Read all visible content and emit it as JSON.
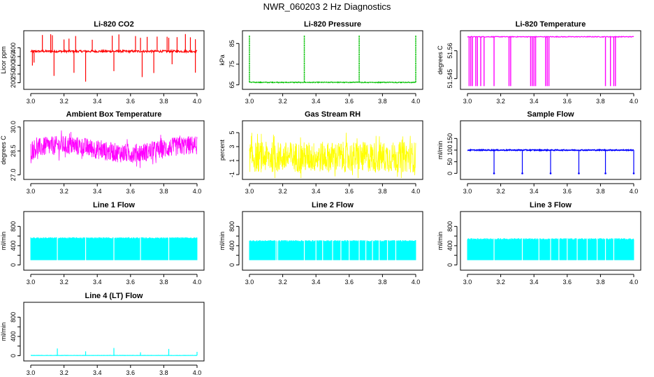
{
  "page": {
    "title": "NWR_060203  2 Hz Diagnostics"
  },
  "chart_data": [
    {
      "type": "line",
      "title": "Li-820 CO2",
      "ylabel": "Licor ppm",
      "color": "#ff0000",
      "xlim": [
        3.0,
        4.0
      ],
      "ylim": [
        170,
        490
      ],
      "xticks": [
        "3.0",
        "3.2",
        "3.4",
        "3.6",
        "3.8",
        "4.0"
      ],
      "yticks": [
        200,
        250,
        300,
        350,
        400
      ],
      "baseline": 380,
      "noise": 6,
      "pattern": "co2",
      "spikes_up": [
        3.07,
        3.12,
        3.13,
        3.2,
        3.23,
        3.27,
        3.37,
        3.49,
        3.53,
        3.63,
        3.66,
        3.7,
        3.76,
        3.82,
        3.83,
        3.88,
        3.93,
        3.96,
        3.99
      ],
      "spikes_down": [
        3.01,
        3.02,
        3.14,
        3.26,
        3.33,
        3.5,
        3.67,
        3.74,
        3.85,
        3.99
      ],
      "spike_high": 480,
      "spike_low": 185
    },
    {
      "type": "line",
      "title": "Li-820 Pressure",
      "ylabel": "kPa",
      "color": "#00c000",
      "xlim": [
        3.0,
        4.0
      ],
      "ylim": [
        63.5,
        90.5
      ],
      "xticks": [
        "3.0",
        "3.2",
        "3.4",
        "3.6",
        "3.8",
        "4.0"
      ],
      "yticks": [
        65,
        75,
        85
      ],
      "baseline": 66.2,
      "noise": 0.15,
      "pattern": "pressure",
      "spikes_up": [
        3.0,
        3.33,
        3.66,
        4.0
      ],
      "spike_high": 89
    },
    {
      "type": "line",
      "title": "Li-820 Temperature",
      "ylabel": "degrees C",
      "color": "#ff00ff",
      "xlim": [
        3.0,
        4.0
      ],
      "ylim": [
        51.54,
        51.57
      ],
      "xticks": [
        "3.0",
        "3.2",
        "3.4",
        "3.6",
        "3.8",
        "4.0"
      ],
      "yticks": [
        51.545,
        51.56
      ],
      "baseline": 51.5675,
      "noise": 0.0002,
      "pattern": "temperature",
      "spikes_down": [
        3.01,
        3.02,
        3.03,
        3.05,
        3.06,
        3.08,
        3.1,
        3.16,
        3.25,
        3.26,
        3.38,
        3.39,
        3.4,
        3.41,
        3.47,
        3.48,
        3.49,
        3.83,
        3.86,
        3.88,
        3.89
      ],
      "spike_low": 51.541
    },
    {
      "type": "line",
      "title": "Ambient Box Temperature",
      "ylabel": "degrees C",
      "color": "#ff00ff",
      "xlim": [
        3.0,
        4.0
      ],
      "ylim": [
        26.8,
        30.3
      ],
      "xticks": [
        "3.0",
        "3.2",
        "3.4",
        "3.6",
        "3.8",
        "4.0"
      ],
      "yticks": [
        27.0,
        28.5,
        30.0
      ],
      "yticklabels": [
        "27.0",
        "28.5",
        "30.0"
      ],
      "baseline": 28.6,
      "noise": 0.6,
      "pattern": "band"
    },
    {
      "type": "line",
      "title": "Gas Stream RH",
      "ylabel": "percent",
      "color": "#ffff00",
      "xlim": [
        3.0,
        4.0
      ],
      "ylim": [
        -1.5,
        6.5
      ],
      "xticks": [
        "3.0",
        "3.2",
        "3.4",
        "3.6",
        "3.8",
        "4.0"
      ],
      "yticks": [
        -1,
        1,
        3,
        5
      ],
      "baseline": 1.5,
      "noise": 2.2,
      "pattern": "band"
    },
    {
      "type": "line",
      "title": "Sample Flow",
      "ylabel": "ml/min",
      "color": "#0000ff",
      "xlim": [
        3.0,
        4.0
      ],
      "ylim": [
        -20,
        220
      ],
      "xticks": [
        "3.0",
        "3.2",
        "3.4",
        "3.6",
        "3.8",
        "4.0"
      ],
      "yticks": [
        0,
        50,
        100,
        150
      ],
      "baseline": 100,
      "noise": 2,
      "pattern": "sample",
      "spikes_down": [
        3.16,
        3.33,
        3.5,
        3.67,
        3.83,
        4.0
      ],
      "spike_low": 0
    },
    {
      "type": "line",
      "title": "Line 1 Flow",
      "ylabel": "ml/min",
      "color": "#00ffff",
      "xlim": [
        3.0,
        4.0
      ],
      "ylim": [
        -80,
        1080
      ],
      "xticks": [
        "3.0",
        "3.2",
        "3.4",
        "3.6",
        "3.8",
        "4.0"
      ],
      "yticks": [
        0,
        200,
        400,
        600,
        800
      ],
      "yticklabels": [
        "0",
        "",
        "400",
        "",
        "800"
      ],
      "band_low": 100,
      "band_high": 560,
      "pattern": "flow",
      "gaps": [
        3.16,
        3.33,
        3.5,
        3.66,
        3.83
      ]
    },
    {
      "type": "line",
      "title": "Line 2 Flow",
      "ylabel": "ml/min",
      "color": "#00ffff",
      "xlim": [
        3.0,
        4.0
      ],
      "ylim": [
        -80,
        1080
      ],
      "xticks": [
        "3.0",
        "3.2",
        "3.4",
        "3.6",
        "3.8",
        "4.0"
      ],
      "yticks": [
        0,
        200,
        400,
        600,
        800
      ],
      "yticklabels": [
        "0",
        "",
        "400",
        "",
        "800"
      ],
      "band_low": 100,
      "band_high": 500,
      "pattern": "flow",
      "gaps": [
        3.16,
        3.17,
        3.33,
        3.4,
        3.44,
        3.5,
        3.55,
        3.6,
        3.66,
        3.7,
        3.74,
        3.78,
        3.83,
        3.88
      ]
    },
    {
      "type": "line",
      "title": "Line 3 Flow",
      "ylabel": "ml/min",
      "color": "#00ffff",
      "xlim": [
        3.0,
        4.0
      ],
      "ylim": [
        -80,
        1080
      ],
      "xticks": [
        "3.0",
        "3.2",
        "3.4",
        "3.6",
        "3.8",
        "4.0"
      ],
      "yticks": [
        0,
        200,
        400,
        600,
        800
      ],
      "yticklabels": [
        "0",
        "",
        "400",
        "",
        "800"
      ],
      "band_low": 100,
      "band_high": 540,
      "pattern": "flow",
      "gaps": [
        3.16,
        3.33,
        3.43,
        3.5,
        3.55,
        3.6,
        3.66,
        3.72,
        3.78,
        3.83,
        3.88
      ]
    },
    {
      "type": "line",
      "title": "Line 4 (LT) Flow",
      "ylabel": "ml/min",
      "color": "#00ffff",
      "xlim": [
        3.0,
        4.0
      ],
      "ylim": [
        -80,
        1080
      ],
      "xticks": [
        "3.0",
        "3.2",
        "3.4",
        "3.6",
        "3.8",
        "4.0"
      ],
      "yticks": [
        0,
        200,
        400,
        600,
        800
      ],
      "yticklabels": [
        "0",
        "",
        "400",
        "",
        "800"
      ],
      "baseline": 5,
      "noise": 2,
      "pattern": "lowflow",
      "spikes_up": [
        3.16,
        3.33,
        3.5,
        3.66,
        3.83,
        4.0
      ],
      "spike_heights": [
        150,
        90,
        160,
        70,
        140,
        80
      ]
    }
  ]
}
